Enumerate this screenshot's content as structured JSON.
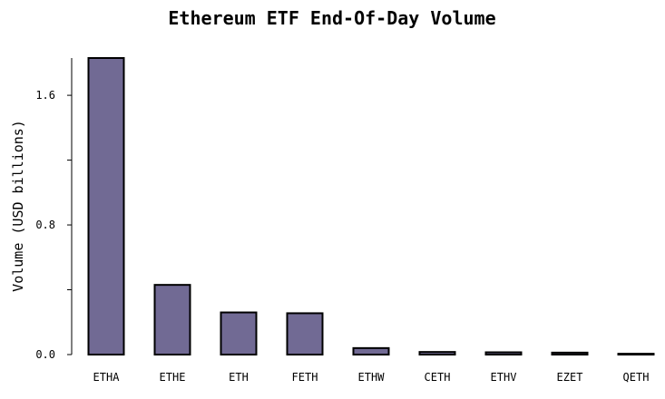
{
  "chart_data": {
    "type": "bar",
    "title": "Ethereum ETF End-Of-Day Volume",
    "xlabel": "",
    "ylabel": "Volume (USD billions)",
    "categories": [
      "ETHA",
      "ETHE",
      "ETH",
      "FETH",
      "ETHW",
      "CETH",
      "ETHV",
      "EZET",
      "QETH"
    ],
    "values": [
      1.83,
      0.43,
      0.26,
      0.255,
      0.04,
      0.016,
      0.014,
      0.012,
      0.005
    ],
    "ylim": [
      0,
      1.83
    ],
    "yticks": [
      0.0,
      0.4,
      0.8,
      1.2,
      1.6
    ],
    "ytick_labels": [
      "0.0",
      "",
      "0.8",
      "",
      "1.6"
    ],
    "bar_color": "#716a94",
    "grid": false,
    "legend": "none"
  }
}
